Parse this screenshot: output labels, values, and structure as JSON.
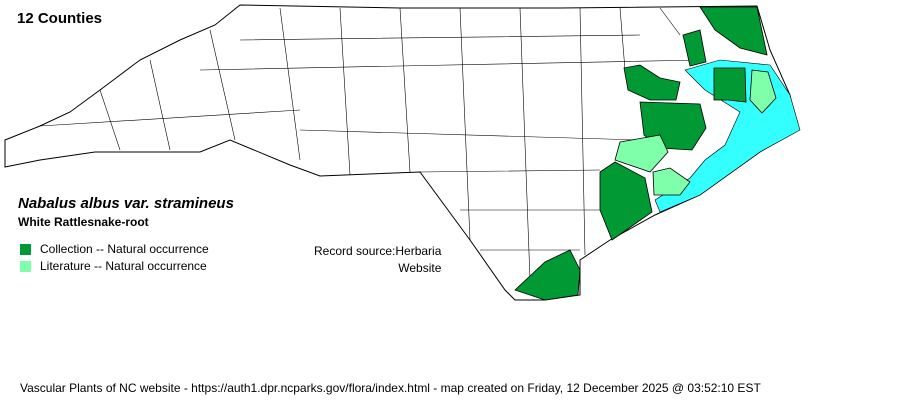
{
  "county_count_label": "12 Counties",
  "species": {
    "scientific_name": "Nabalus albus var. stramineus",
    "common_name": "White Rattlesnake-root"
  },
  "legend": [
    {
      "label": "Collection -- Natural occurrence",
      "color": "#009933"
    },
    {
      "label": "Literature -- Natural occurrence",
      "color": "#80ffaa"
    }
  ],
  "record_source": {
    "label": "Record source:",
    "value_line1": "Herbaria",
    "value_line2": "Website"
  },
  "footer": "Vascular Plants of NC website - https://auth1.dpr.ncparks.gov/flora/index.html - map created on Friday, 12 December 2025 @ 03:52:10 EST",
  "colors": {
    "water": "#33ffff",
    "county_fill": "#ffffff",
    "border": "#000000"
  }
}
